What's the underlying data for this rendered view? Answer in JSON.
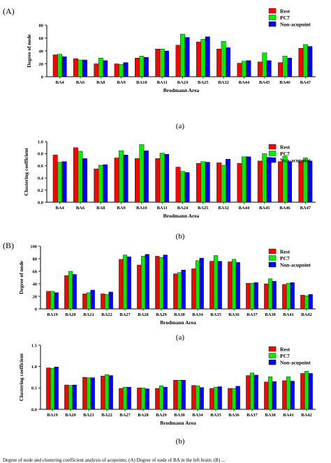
{
  "figure": {
    "panel_a_letter": "(A)",
    "panel_b_letter": "(B)",
    "caption": "Degree of node and clustering coefficient analysis of acupoints; (A) Degree of node of BA in the left brain; (B) ..."
  },
  "legend": {
    "series": [
      "Rest",
      "PC7",
      "Non-acupoint"
    ],
    "colors": [
      "#ff0000",
      "#00ee00",
      "#0000ff"
    ]
  },
  "chart_data": [
    {
      "type": "bar",
      "panel": "A",
      "sublabel": "(a)",
      "xlabel": "Brodmann Area",
      "ylabel": "Degree of node",
      "ylim": [
        0,
        80
      ],
      "yticks": [
        0,
        20,
        40,
        60,
        80
      ],
      "ytick_labels": [
        "0",
        "20",
        "40",
        "60",
        "80"
      ],
      "categories": [
        "BA4",
        "BA6",
        "BA8",
        "BA9",
        "BA10",
        "BA11",
        "BA24",
        "BA25",
        "BA32",
        "BA44",
        "BA45",
        "BA46",
        "BA47"
      ],
      "series": [
        {
          "name": "Rest",
          "values": [
            34,
            28,
            20,
            20,
            29,
            43,
            49,
            54,
            43,
            21,
            23,
            22,
            44
          ]
        },
        {
          "name": "PC7",
          "values": [
            35,
            26,
            29,
            19,
            32,
            43,
            66,
            58,
            55,
            24,
            37,
            32,
            50
          ]
        },
        {
          "name": "Non-acupoint",
          "values": [
            31,
            26,
            25,
            22,
            30,
            40,
            61,
            62,
            45,
            25,
            25,
            29,
            47
          ]
        }
      ],
      "legend_position": "top-right"
    },
    {
      "type": "bar",
      "panel": "A",
      "sublabel": "(b)",
      "xlabel": "Brodmann Area",
      "ylabel": "Clustering coefficient",
      "ylim": [
        0,
        1.0
      ],
      "yticks": [
        0,
        0.2,
        0.4,
        0.6,
        0.8,
        1.0
      ],
      "ytick_labels": [
        "0.0",
        "0.2",
        "0.4",
        "0.6",
        "0.8",
        "1.0"
      ],
      "categories": [
        "BA4",
        "BA6",
        "BA8",
        "BA9",
        "BA10",
        "BA11",
        "BA24",
        "BA25",
        "BA32",
        "BA44",
        "BA45",
        "BA46",
        "BA47"
      ],
      "series": [
        {
          "name": "Rest",
          "values": [
            0.78,
            0.9,
            0.55,
            0.73,
            0.72,
            0.72,
            0.58,
            0.64,
            0.65,
            0.64,
            0.68,
            0.67,
            0.67
          ]
        },
        {
          "name": "PC7",
          "values": [
            0.66,
            0.84,
            0.61,
            0.85,
            0.95,
            0.81,
            0.51,
            0.67,
            0.61,
            0.75,
            0.8,
            0.76,
            0.73
          ]
        },
        {
          "name": "Non-acupoint",
          "values": [
            0.67,
            0.72,
            0.62,
            0.78,
            0.85,
            0.79,
            0.49,
            0.66,
            0.71,
            0.75,
            0.74,
            0.67,
            0.68
          ]
        }
      ],
      "legend_position": "top-right"
    },
    {
      "type": "bar",
      "panel": "B",
      "sublabel": "(a)",
      "xlabel": "Brodmann Area",
      "ylabel": "Degree of node",
      "ylim": [
        0,
        100
      ],
      "yticks": [
        0,
        20,
        40,
        60,
        80,
        100
      ],
      "ytick_labels": [
        "0",
        "20",
        "40",
        "60",
        "80",
        "100"
      ],
      "categories": [
        "BA19",
        "BA20",
        "BA21",
        "BA22",
        "BA27",
        "BA28",
        "BA29",
        "BA30",
        "BA34",
        "BA35",
        "BA36",
        "BA37",
        "BA38",
        "BA41",
        "BA42"
      ],
      "series": [
        {
          "name": "Rest",
          "values": [
            28,
            53,
            24,
            24,
            79,
            70,
            84,
            56,
            64,
            76,
            75,
            41,
            40,
            39,
            22
          ]
        },
        {
          "name": "PC7",
          "values": [
            28,
            60,
            26,
            23,
            86,
            84,
            82,
            58,
            77,
            85,
            79,
            41,
            48,
            41,
            21
          ]
        },
        {
          "name": "Non-acupoint",
          "values": [
            26,
            55,
            30,
            27,
            83,
            87,
            86,
            62,
            81,
            76,
            74,
            42,
            44,
            42,
            23
          ]
        }
      ],
      "legend_position": "top-right"
    },
    {
      "type": "bar",
      "panel": "B",
      "sublabel": "(b)",
      "xlabel": "Brodmann Area",
      "ylabel": "Clustering coefficient",
      "ylim": [
        0,
        1.5
      ],
      "yticks": [
        0,
        0.5,
        1.0,
        1.5
      ],
      "ytick_labels": [
        "0.0",
        "0.5",
        "1.0",
        "1.5"
      ],
      "categories": [
        "BA19",
        "BA20",
        "BA21",
        "BA22",
        "BA27",
        "BA28",
        "BA29",
        "BA30",
        "BA34",
        "BA35",
        "BA36",
        "BA37",
        "BA38",
        "BA41",
        "BA42"
      ],
      "series": [
        {
          "name": "Rest",
          "values": [
            0.97,
            0.57,
            0.75,
            0.78,
            0.49,
            0.5,
            0.49,
            0.68,
            0.56,
            0.49,
            0.49,
            0.79,
            0.64,
            0.67,
            0.84
          ]
        },
        {
          "name": "PC7",
          "values": [
            0.96,
            0.56,
            0.74,
            0.81,
            0.52,
            0.5,
            0.55,
            0.68,
            0.55,
            0.52,
            0.49,
            0.85,
            0.76,
            0.76,
            0.89
          ]
        },
        {
          "name": "Non-acupoint",
          "values": [
            0.99,
            0.57,
            0.74,
            0.79,
            0.52,
            0.48,
            0.52,
            0.68,
            0.51,
            0.53,
            0.54,
            0.8,
            0.65,
            0.66,
            0.84
          ]
        }
      ],
      "legend_position": "top-right"
    }
  ]
}
